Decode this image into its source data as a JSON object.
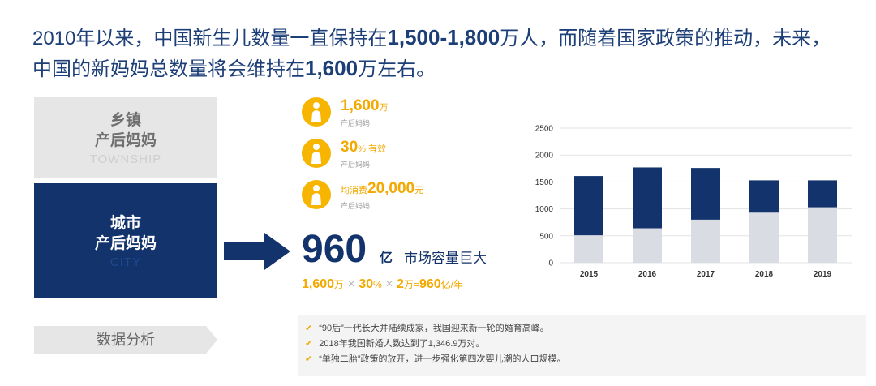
{
  "headline": {
    "line1_a": "2010年以来，中国新生儿数量一直保持在",
    "line1_b": "1,500-1,800",
    "line1_c": "万人，而随着国家政策的推动，未来，",
    "line2_a": "中国的新妈妈总数量将会维持在",
    "line2_b": "1,600",
    "line2_c": "万左右。"
  },
  "township": {
    "title1": "乡镇",
    "title2": "产后妈妈",
    "english": "TOWNSHIP"
  },
  "city": {
    "title1": "城市",
    "title2": "产后妈妈",
    "english": "CITY"
  },
  "stats": [
    {
      "value": "1,600",
      "unit": "万",
      "sub": "产后妈妈"
    },
    {
      "value": "30",
      "unit": "% 有效",
      "sub": "产后妈妈"
    },
    {
      "prefix": "均消费",
      "value": "20,000",
      "unit": "元",
      "sub": "产后妈妈"
    }
  ],
  "market": {
    "value": "960",
    "unit": "亿",
    "label": "市场容量巨大"
  },
  "formula": {
    "v1": "1,600",
    "u1": "万",
    "x1": "×",
    "v2": "30",
    "u2": "%",
    "x2": "×",
    "v3": "2",
    "u3": "万",
    "eq": "=",
    "v4": "960",
    "u4": "亿/年"
  },
  "analysis_label": "数据分析",
  "bullets": [
    "“90后”一代长大并陆续成家，我国迎来新一轮的婚育高峰。",
    "2018年我国新婚人数达到了1,346.9万对。",
    "“单独二胎”政策的放开，进一步强化第四次婴儿潮的人口规模。"
  ],
  "colors": {
    "navy": "#13336c",
    "gold": "#f2a900",
    "grey": "#d9dce2"
  },
  "icons": {
    "stat": "mother-icon",
    "check": "check-icon",
    "arrow": "right-arrow-icon"
  },
  "chart_data": {
    "type": "bar",
    "stacked": true,
    "categories": [
      "2015",
      "2016",
      "2017",
      "2018",
      "2019"
    ],
    "series": [
      {
        "values": [
          510,
          640,
          800,
          930,
          1030
        ],
        "color": "#d9dce2"
      },
      {
        "values": [
          1100,
          1130,
          960,
          600,
          500
        ],
        "color": "#13336c"
      }
    ],
    "ylim": [
      0,
      2500
    ],
    "yticks": [
      0,
      500,
      1000,
      1500,
      2000,
      2500
    ],
    "grid": true,
    "title": "",
    "xlabel": "",
    "ylabel": ""
  }
}
